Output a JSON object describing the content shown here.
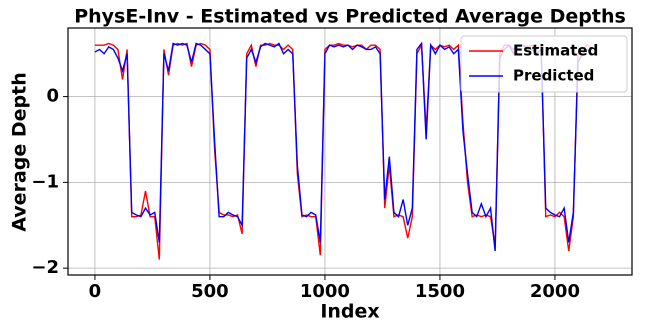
{
  "chart_data": {
    "type": "line",
    "title": "PhysE-Inv - Estimated vs Predicted Average Depths",
    "x_label": "Index",
    "y_label": "Average Depth",
    "x": [
      0,
      20,
      40,
      60,
      80,
      100,
      120,
      140,
      160,
      180,
      200,
      220,
      240,
      260,
      280,
      300,
      320,
      340,
      360,
      380,
      400,
      420,
      440,
      460,
      480,
      500,
      520,
      540,
      560,
      580,
      600,
      620,
      640,
      660,
      680,
      700,
      720,
      740,
      760,
      780,
      800,
      820,
      840,
      860,
      880,
      900,
      920,
      940,
      960,
      980,
      1000,
      1020,
      1040,
      1060,
      1080,
      1100,
      1120,
      1140,
      1160,
      1180,
      1200,
      1220,
      1240,
      1260,
      1280,
      1300,
      1320,
      1340,
      1360,
      1380,
      1400,
      1420,
      1440,
      1460,
      1480,
      1500,
      1520,
      1540,
      1560,
      1580,
      1600,
      1620,
      1640,
      1660,
      1680,
      1700,
      1720,
      1740,
      1760,
      1780,
      1800,
      1820,
      1840,
      1860,
      1880,
      1900,
      1920,
      1940,
      1960,
      1980,
      2000,
      2020,
      2040,
      2060,
      2080,
      2100,
      2120,
      2140,
      2160
    ],
    "series": [
      {
        "name": "Estimated",
        "color": "#ff0000",
        "values": [
          0.6,
          0.6,
          0.6,
          0.62,
          0.6,
          0.55,
          0.2,
          0.55,
          -1.4,
          -1.4,
          -1.38,
          -1.1,
          -1.4,
          -1.4,
          -1.9,
          0.55,
          0.25,
          0.6,
          0.62,
          0.6,
          0.62,
          0.35,
          0.6,
          0.62,
          0.6,
          0.55,
          -0.6,
          -1.35,
          -1.38,
          -1.38,
          -1.4,
          -1.38,
          -1.6,
          0.5,
          0.6,
          0.35,
          0.6,
          0.6,
          0.62,
          0.6,
          0.6,
          0.55,
          0.6,
          0.55,
          -0.9,
          -1.4,
          -1.38,
          -1.4,
          -1.4,
          -1.85,
          0.55,
          0.6,
          0.6,
          0.62,
          0.6,
          0.6,
          0.58,
          0.6,
          0.6,
          0.55,
          0.6,
          0.6,
          0.55,
          -1.3,
          -0.8,
          -1.4,
          -1.38,
          -1.4,
          -1.65,
          -1.4,
          0.5,
          0.6,
          -0.4,
          0.6,
          0.55,
          0.6,
          0.58,
          0.6,
          0.55,
          0.6,
          -0.3,
          -1.0,
          -1.4,
          -1.38,
          -1.4,
          -1.38,
          -1.4,
          -1.75,
          0.5,
          0.6,
          0.6,
          0.55,
          0.6,
          0.6,
          0.58,
          0.6,
          0.55,
          0.6,
          -1.4,
          -1.38,
          -1.4,
          -1.35,
          -1.4,
          -1.8,
          -1.4,
          0.5,
          0.55,
          0.6,
          0.55
        ]
      },
      {
        "name": "Predicted",
        "color": "#0000ff",
        "values": [
          0.52,
          0.55,
          0.5,
          0.58,
          0.55,
          0.45,
          0.3,
          0.5,
          -1.35,
          -1.38,
          -1.4,
          -1.3,
          -1.38,
          -1.35,
          -1.7,
          0.5,
          0.3,
          0.62,
          0.6,
          0.62,
          0.6,
          0.4,
          0.62,
          0.6,
          0.55,
          0.5,
          -0.5,
          -1.4,
          -1.4,
          -1.35,
          -1.38,
          -1.4,
          -1.5,
          0.45,
          0.55,
          0.4,
          0.58,
          0.62,
          0.6,
          0.58,
          0.62,
          0.5,
          0.55,
          0.5,
          -0.8,
          -1.38,
          -1.4,
          -1.35,
          -1.38,
          -1.7,
          0.5,
          0.6,
          0.58,
          0.6,
          0.58,
          0.6,
          0.55,
          0.6,
          0.58,
          0.55,
          0.55,
          0.58,
          0.5,
          -1.2,
          -0.7,
          -1.35,
          -1.4,
          -1.2,
          -1.5,
          -1.3,
          0.55,
          0.62,
          -0.5,
          0.6,
          0.5,
          0.6,
          0.55,
          0.58,
          0.5,
          0.55,
          -0.4,
          -0.9,
          -1.35,
          -1.4,
          -1.25,
          -1.4,
          -1.3,
          -1.8,
          0.45,
          0.55,
          0.6,
          0.5,
          0.58,
          0.6,
          0.55,
          0.55,
          0.5,
          0.55,
          -1.3,
          -1.35,
          -1.38,
          -1.4,
          -1.3,
          -1.7,
          -1.35,
          0.4,
          0.5,
          0.55,
          0.5
        ]
      }
    ],
    "xlim": [
      -117,
      2335
    ],
    "ylim": [
      -2.08,
      0.8
    ],
    "xticks": [
      0,
      500,
      1000,
      1500,
      2000
    ],
    "yticks": [
      {
        "value": -2,
        "label": "−2"
      },
      {
        "value": -1,
        "label": "−1"
      },
      0
    ],
    "grid": true,
    "legend": "upper right"
  }
}
